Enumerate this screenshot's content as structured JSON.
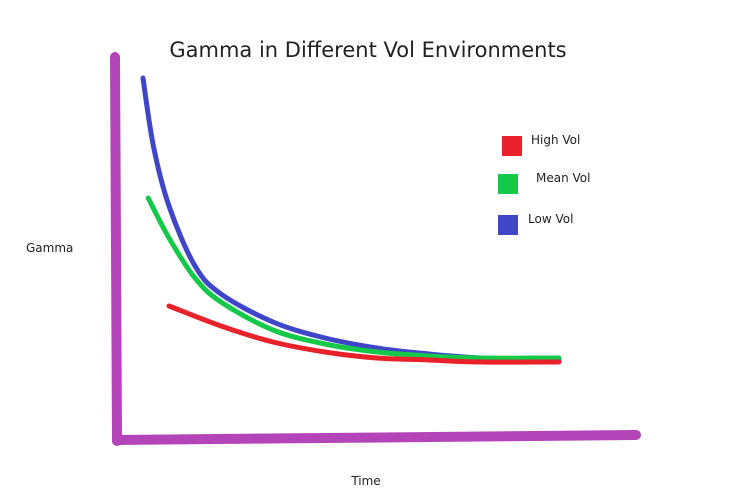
{
  "chart_data": {
    "type": "line",
    "title": "Gamma in Different Vol Environments",
    "xlabel": "Time",
    "ylabel": "Gamma",
    "xlim": [
      0,
      10
    ],
    "ylim": [
      0,
      10
    ],
    "grid": false,
    "legend_position": "top-right",
    "axis_color": "#b445b8",
    "series": [
      {
        "name": "High Vol",
        "color": "#e8212b",
        "x": [
          1.0,
          2.0,
          3.0,
          4.0,
          5.0,
          6.0,
          7.0,
          8.5
        ],
        "y": [
          3.3,
          2.8,
          2.4,
          2.15,
          2.0,
          1.95,
          1.9,
          1.9
        ]
      },
      {
        "name": "Mean Vol",
        "color": "#14c84a",
        "x": [
          0.6,
          1.0,
          1.5,
          2.0,
          3.0,
          4.0,
          5.0,
          6.0,
          7.0,
          8.5
        ],
        "y": [
          6.0,
          5.0,
          4.0,
          3.4,
          2.7,
          2.35,
          2.15,
          2.05,
          2.0,
          2.0
        ]
      },
      {
        "name": "Low Vol",
        "color": "#3f46c8",
        "x": [
          0.5,
          0.7,
          1.0,
          1.5,
          2.0,
          3.0,
          4.0,
          5.0,
          6.0,
          7.0,
          8.5
        ],
        "y": [
          9.0,
          7.3,
          5.8,
          4.3,
          3.6,
          2.9,
          2.5,
          2.25,
          2.1,
          2.0,
          1.95
        ]
      }
    ]
  }
}
